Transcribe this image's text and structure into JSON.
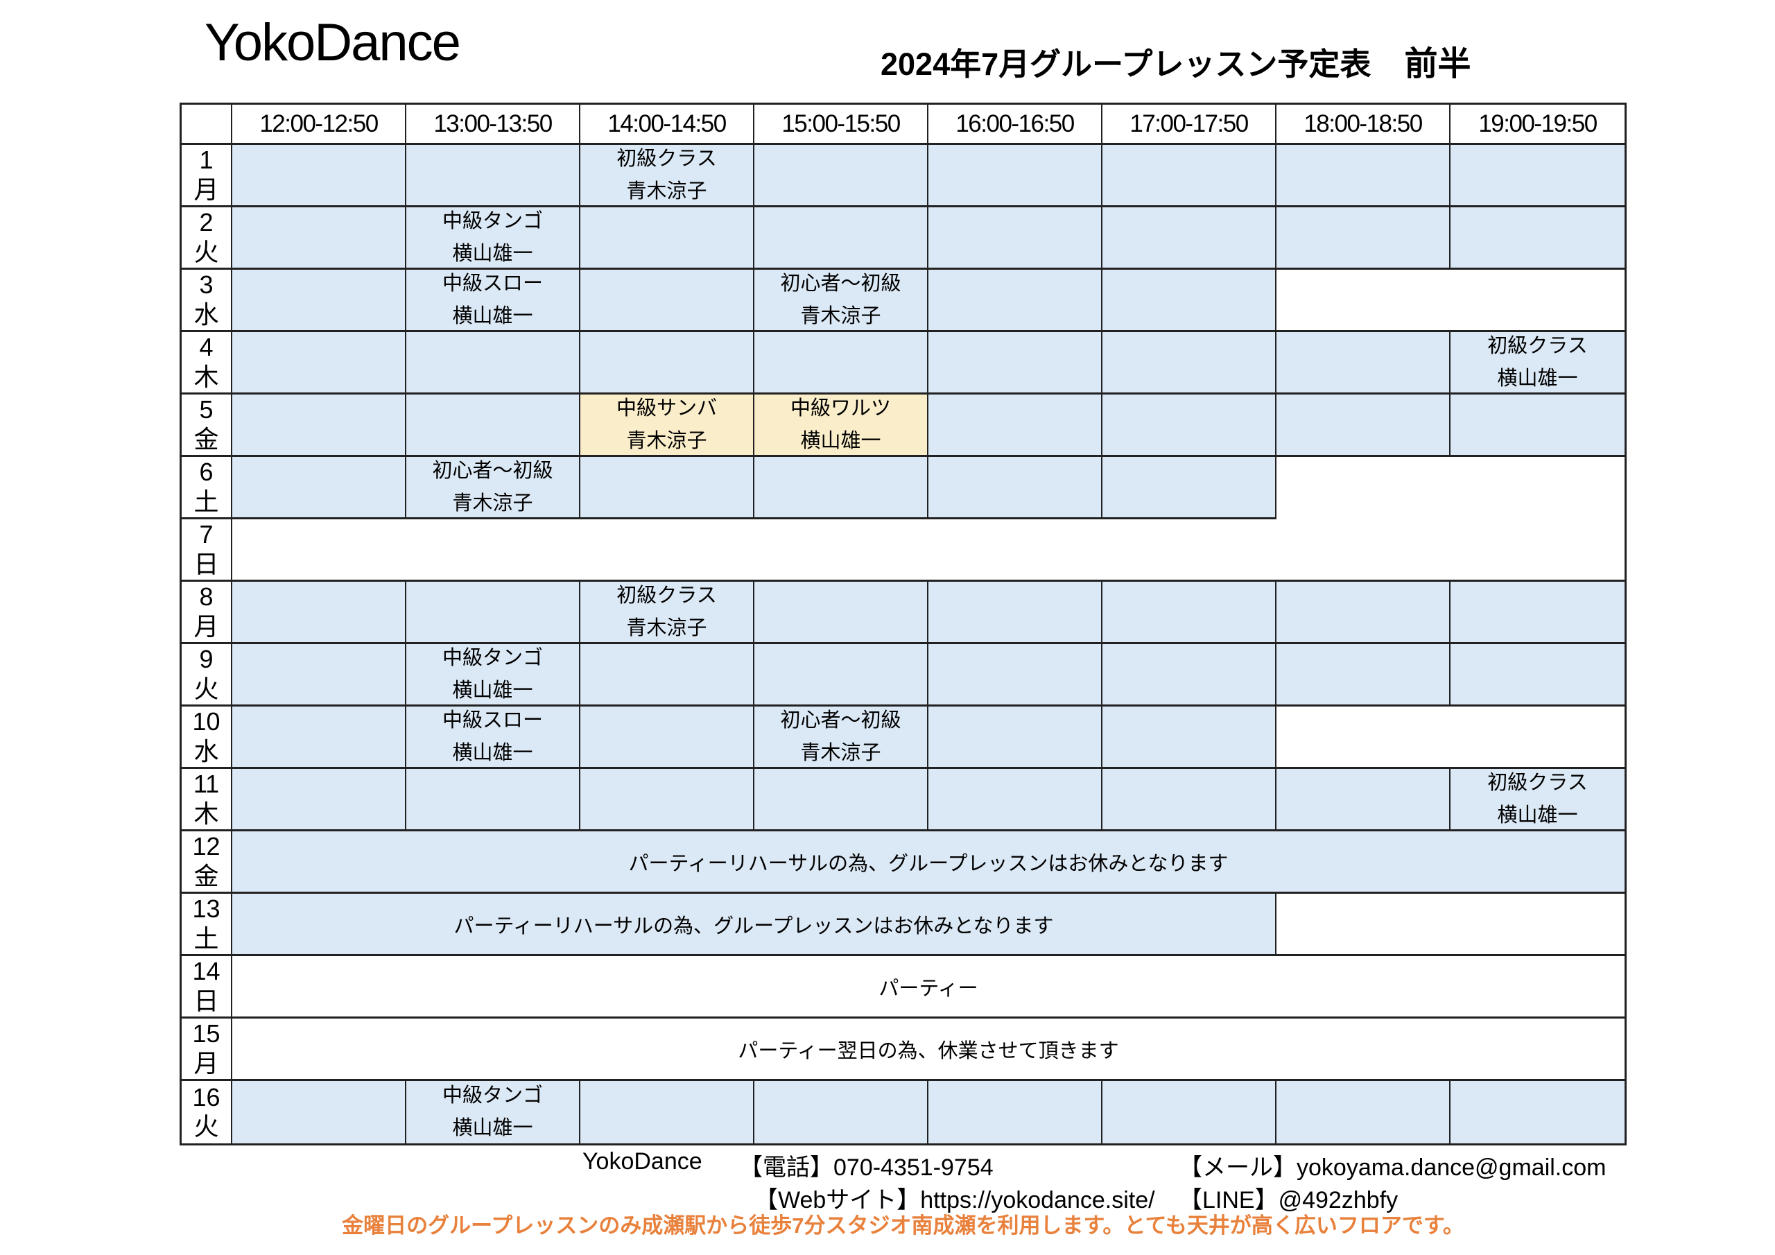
{
  "header": {
    "studio_name": "YokoDance",
    "schedule_title": "2024年7月グループレッスン予定表",
    "schedule_half": "前半"
  },
  "colors": {
    "available_slot": "#dbe8f5",
    "friday_alt_studio_slot": "#faedca",
    "closed_slot": "#ffffff",
    "notice_text": "#e8813c",
    "grid_border": "#212121"
  },
  "table": {
    "time_headers": [
      "12:00-12:50",
      "13:00-13:50",
      "14:00-14:50",
      "15:00-15:50",
      "16:00-16:50",
      "17:00-17:50",
      "18:00-18:50",
      "19:00-19:50"
    ],
    "rows": [
      {
        "day": "1",
        "weekday": "月",
        "cells": [
          {
            "span": 1,
            "bg": "blue"
          },
          {
            "span": 1,
            "bg": "blue"
          },
          {
            "span": 1,
            "bg": "blue",
            "lesson": {
              "title": "初級クラス",
              "teacher": "青木涼子"
            }
          },
          {
            "span": 1,
            "bg": "blue"
          },
          {
            "span": 1,
            "bg": "blue"
          },
          {
            "span": 1,
            "bg": "blue"
          },
          {
            "span": 1,
            "bg": "blue"
          },
          {
            "span": 1,
            "bg": "blue"
          }
        ]
      },
      {
        "day": "2",
        "weekday": "火",
        "cells": [
          {
            "span": 1,
            "bg": "blue"
          },
          {
            "span": 1,
            "bg": "blue",
            "lesson": {
              "title": "中級タンゴ",
              "teacher": "横山雄一"
            }
          },
          {
            "span": 1,
            "bg": "blue"
          },
          {
            "span": 1,
            "bg": "blue"
          },
          {
            "span": 1,
            "bg": "blue"
          },
          {
            "span": 1,
            "bg": "blue"
          },
          {
            "span": 1,
            "bg": "blue"
          },
          {
            "span": 1,
            "bg": "blue"
          }
        ]
      },
      {
        "day": "3",
        "weekday": "水",
        "cells": [
          {
            "span": 1,
            "bg": "blue"
          },
          {
            "span": 1,
            "bg": "blue",
            "lesson": {
              "title": "中級スロー",
              "teacher": "横山雄一"
            }
          },
          {
            "span": 1,
            "bg": "blue"
          },
          {
            "span": 1,
            "bg": "blue",
            "lesson": {
              "title": "初心者～初級",
              "teacher": "青木涼子"
            }
          },
          {
            "span": 1,
            "bg": "blue"
          },
          {
            "span": 1,
            "bg": "blue"
          },
          {
            "span": 2,
            "bg": "white"
          }
        ]
      },
      {
        "day": "4",
        "weekday": "木",
        "cells": [
          {
            "span": 1,
            "bg": "blue"
          },
          {
            "span": 1,
            "bg": "blue"
          },
          {
            "span": 1,
            "bg": "blue"
          },
          {
            "span": 1,
            "bg": "blue"
          },
          {
            "span": 1,
            "bg": "blue"
          },
          {
            "span": 1,
            "bg": "blue"
          },
          {
            "span": 1,
            "bg": "blue"
          },
          {
            "span": 1,
            "bg": "blue",
            "lesson": {
              "title": "初級クラス",
              "teacher": "横山雄一"
            }
          }
        ]
      },
      {
        "day": "5",
        "weekday": "金",
        "cells": [
          {
            "span": 1,
            "bg": "blue"
          },
          {
            "span": 1,
            "bg": "blue"
          },
          {
            "span": 1,
            "bg": "yellow",
            "lesson": {
              "title": "中級サンバ",
              "teacher": "青木涼子"
            }
          },
          {
            "span": 1,
            "bg": "yellow",
            "lesson": {
              "title": "中級ワルツ",
              "teacher": "横山雄一"
            }
          },
          {
            "span": 1,
            "bg": "blue"
          },
          {
            "span": 1,
            "bg": "blue"
          },
          {
            "span": 1,
            "bg": "blue"
          },
          {
            "span": 1,
            "bg": "blue"
          }
        ]
      },
      {
        "day": "6",
        "weekday": "土",
        "cells": [
          {
            "span": 1,
            "bg": "blue"
          },
          {
            "span": 1,
            "bg": "blue",
            "lesson": {
              "title": "初心者～初級",
              "teacher": "青木涼子"
            }
          },
          {
            "span": 1,
            "bg": "blue"
          },
          {
            "span": 1,
            "bg": "blue"
          },
          {
            "span": 1,
            "bg": "blue"
          },
          {
            "span": 1,
            "bg": "blue"
          },
          {
            "span": 2,
            "bg": "white",
            "no_bottom": true
          }
        ]
      },
      {
        "day": "7",
        "weekday": "日",
        "cells": [
          {
            "span": 8,
            "bg": "white"
          }
        ]
      },
      {
        "day": "8",
        "weekday": "月",
        "cells": [
          {
            "span": 1,
            "bg": "blue"
          },
          {
            "span": 1,
            "bg": "blue"
          },
          {
            "span": 1,
            "bg": "blue",
            "lesson": {
              "title": "初級クラス",
              "teacher": "青木涼子"
            }
          },
          {
            "span": 1,
            "bg": "blue"
          },
          {
            "span": 1,
            "bg": "blue"
          },
          {
            "span": 1,
            "bg": "blue"
          },
          {
            "span": 1,
            "bg": "blue"
          },
          {
            "span": 1,
            "bg": "blue"
          }
        ]
      },
      {
        "day": "9",
        "weekday": "火",
        "cells": [
          {
            "span": 1,
            "bg": "blue"
          },
          {
            "span": 1,
            "bg": "blue",
            "lesson": {
              "title": "中級タンゴ",
              "teacher": "横山雄一"
            }
          },
          {
            "span": 1,
            "bg": "blue"
          },
          {
            "span": 1,
            "bg": "blue"
          },
          {
            "span": 1,
            "bg": "blue"
          },
          {
            "span": 1,
            "bg": "blue"
          },
          {
            "span": 1,
            "bg": "blue"
          },
          {
            "span": 1,
            "bg": "blue"
          }
        ]
      },
      {
        "day": "10",
        "weekday": "水",
        "cells": [
          {
            "span": 1,
            "bg": "blue"
          },
          {
            "span": 1,
            "bg": "blue",
            "lesson": {
              "title": "中級スロー",
              "teacher": "横山雄一"
            }
          },
          {
            "span": 1,
            "bg": "blue"
          },
          {
            "span": 1,
            "bg": "blue",
            "lesson": {
              "title": "初心者～初級",
              "teacher": "青木涼子"
            }
          },
          {
            "span": 1,
            "bg": "blue"
          },
          {
            "span": 1,
            "bg": "blue"
          },
          {
            "span": 2,
            "bg": "white"
          }
        ]
      },
      {
        "day": "11",
        "weekday": "木",
        "cells": [
          {
            "span": 1,
            "bg": "blue"
          },
          {
            "span": 1,
            "bg": "blue"
          },
          {
            "span": 1,
            "bg": "blue"
          },
          {
            "span": 1,
            "bg": "blue"
          },
          {
            "span": 1,
            "bg": "blue"
          },
          {
            "span": 1,
            "bg": "blue"
          },
          {
            "span": 1,
            "bg": "blue"
          },
          {
            "span": 1,
            "bg": "blue",
            "lesson": {
              "title": "初級クラス",
              "teacher": "横山雄一"
            }
          }
        ]
      },
      {
        "day": "12",
        "weekday": "金",
        "cells": [
          {
            "span": 8,
            "bg": "blue",
            "note": "パーティーリハーサルの為、グループレッスンはお休みとなります"
          }
        ]
      },
      {
        "day": "13",
        "weekday": "土",
        "cells": [
          {
            "span": 6,
            "bg": "blue",
            "note": "パーティーリハーサルの為、グループレッスンはお休みとなります"
          },
          {
            "span": 2,
            "bg": "white"
          }
        ]
      },
      {
        "day": "14",
        "weekday": "日",
        "cells": [
          {
            "span": 8,
            "bg": "white",
            "note": "パーティー"
          }
        ]
      },
      {
        "day": "15",
        "weekday": "月",
        "cells": [
          {
            "span": 8,
            "bg": "white",
            "note": "パーティー翌日の為、休業させて頂きます"
          }
        ]
      },
      {
        "day": "16",
        "weekday": "火",
        "cells": [
          {
            "span": 1,
            "bg": "blue"
          },
          {
            "span": 1,
            "bg": "blue",
            "lesson": {
              "title": "中級タンゴ",
              "teacher": "横山雄一"
            }
          },
          {
            "span": 1,
            "bg": "blue"
          },
          {
            "span": 1,
            "bg": "blue"
          },
          {
            "span": 1,
            "bg": "blue"
          },
          {
            "span": 1,
            "bg": "blue"
          },
          {
            "span": 1,
            "bg": "blue"
          },
          {
            "span": 1,
            "bg": "blue"
          }
        ]
      }
    ]
  },
  "footer": {
    "studio": "YokoDance",
    "phone": "【電話】070-4351-9754",
    "email": "【メール】yokoyama.dance@gmail.com",
    "website": "【Webサイト】https://yokodance.site/",
    "line": "【LINE】@492zhbfy",
    "notice": "金曜日のグループレッスンのみ成瀬駅から徒歩7分スタジオ南成瀬を利用します。とても天井が高く広いフロアです。"
  }
}
